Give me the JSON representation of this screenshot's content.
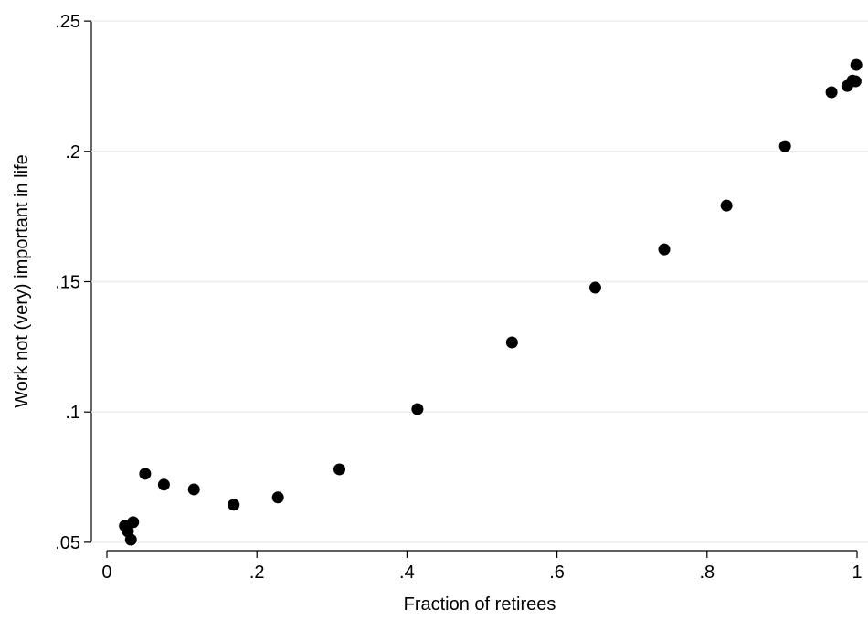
{
  "chart_data": {
    "type": "scatter",
    "x_label": "Fraction of retirees",
    "y_label": "Work not (very) important in life",
    "color": "#000000",
    "grid": true,
    "x": [
      0.024,
      0.028,
      0.032,
      0.035,
      0.051,
      0.076,
      0.116,
      0.169,
      0.228,
      0.31,
      0.414,
      0.54,
      0.651,
      0.743,
      0.826,
      0.904,
      0.966,
      0.987,
      0.994,
      0.998,
      0.999
    ],
    "y": [
      0.0563,
      0.0542,
      0.051,
      0.0577,
      0.0763,
      0.0721,
      0.0703,
      0.0644,
      0.0672,
      0.078,
      0.1011,
      0.1267,
      0.1477,
      0.1624,
      0.1792,
      0.202,
      0.2227,
      0.2251,
      0.2272,
      0.2269,
      0.2332
    ],
    "xlim": [
      -0.0207,
      1.0146
    ],
    "ylim": [
      0.0468,
      0.2546
    ],
    "xticks": [
      0,
      {
        "value": 0.2,
        "label": ".2"
      },
      {
        "value": 0.4,
        "label": ".4"
      },
      {
        "value": 0.6,
        "label": ".6"
      },
      {
        "value": 0.8,
        "label": ".8"
      },
      1
    ],
    "yticks": [
      {
        "value": 0.05,
        "label": ".05"
      },
      {
        "value": 0.1,
        "label": ".1"
      },
      {
        "value": 0.15,
        "label": ".15"
      },
      {
        "value": 0.2,
        "label": ".2"
      },
      {
        "value": 0.25,
        "label": ".25"
      }
    ]
  }
}
